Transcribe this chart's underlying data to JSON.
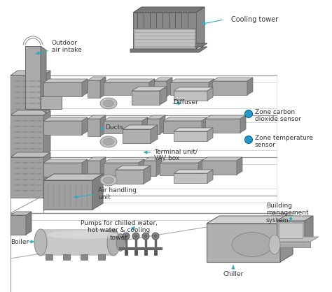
{
  "bg_color": "#ffffff",
  "arrow_color": "#29aec4",
  "text_color": "#333333",
  "gray1": "#aaaaaa",
  "gray2": "#888888",
  "gray3": "#cccccc",
  "gray4": "#666666",
  "gray5": "#bbbbbb",
  "gray6": "#999999",
  "sensor_color": "#2299cc",
  "labels": {
    "cooling_tower": "Cooling tower",
    "outdoor_air": "Outdoor\nair intake",
    "ducts": "Ducts",
    "diffuser": "Diffuser",
    "terminal_unit": "Terminal unit/\nVAV box",
    "air_handling": "Air handling\nunit",
    "pumps": "Pumps for chilled water,\nhot water & cooling\ntower",
    "boiler": "Boiler",
    "chiller": "Chiller",
    "building_mgmt": "Building\nmanagement\nsystem",
    "zone_co2": "Zone carbon\ndioxide sensor",
    "zone_temp": "Zone temperature\nsensor"
  }
}
